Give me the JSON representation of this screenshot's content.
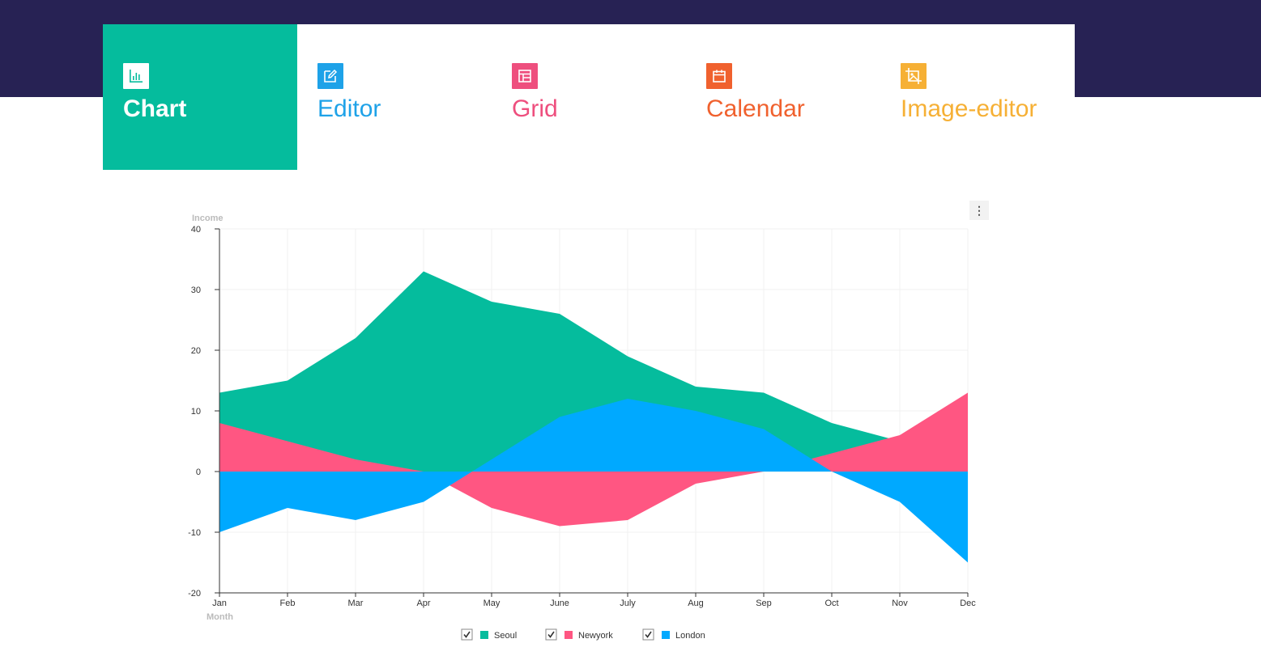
{
  "colors": {
    "header_bg": "#272254",
    "seoul": "#05bc9d",
    "newyork": "#ff5682",
    "london": "#00a9ff"
  },
  "nav": {
    "tabs": [
      {
        "label": "Chart",
        "icon": "bar-chart-icon",
        "color": "#05bc9d",
        "active": true
      },
      {
        "label": "Editor",
        "icon": "edit-icon",
        "color": "#1ea2e8",
        "active": false
      },
      {
        "label": "Grid",
        "icon": "table-icon",
        "color": "#ee4f7e",
        "active": false
      },
      {
        "label": "Calendar",
        "icon": "calendar-icon",
        "color": "#f0612e",
        "active": false
      },
      {
        "label": "Image-editor",
        "icon": "image-icon",
        "color": "#f6b035",
        "active": false
      }
    ]
  },
  "chart_menu": {
    "icon": "more-vertical-icon",
    "glyph": "⋮"
  },
  "chart_data": {
    "type": "area",
    "title": "",
    "xlabel": "Month",
    "ylabel": "Income",
    "categories": [
      "Jan",
      "Feb",
      "Mar",
      "Apr",
      "May",
      "June",
      "July",
      "Aug",
      "Sep",
      "Oct",
      "Nov",
      "Dec"
    ],
    "ylim": [
      -20,
      40
    ],
    "yticks": [
      40,
      30,
      20,
      10,
      0,
      -10,
      -20
    ],
    "grid": true,
    "legend_position": "bottom",
    "series": [
      {
        "name": "Seoul",
        "values": [
          13,
          15,
          22,
          33,
          28,
          26,
          19,
          14,
          13,
          8,
          5,
          0
        ]
      },
      {
        "name": "Newyork",
        "values": [
          8,
          5,
          2,
          0,
          -6,
          -9,
          -8,
          -2,
          0,
          3,
          6,
          13
        ]
      },
      {
        "name": "London",
        "values": [
          -10,
          -6,
          -8,
          -5,
          2,
          9,
          12,
          10,
          7,
          0,
          -5,
          -15
        ]
      }
    ]
  }
}
